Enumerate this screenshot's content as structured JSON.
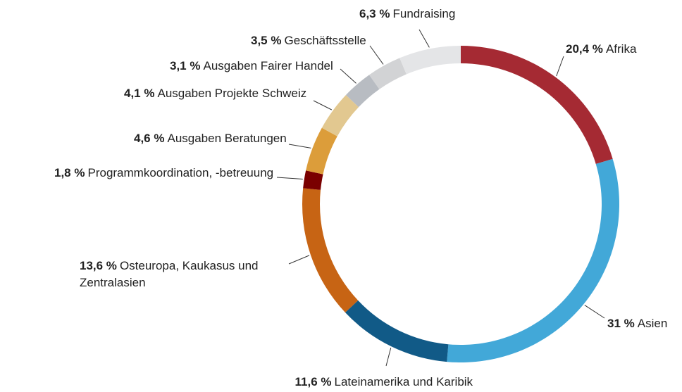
{
  "chart_data": {
    "type": "donut",
    "categories": [
      "Afrika",
      "Asien",
      "Lateinamerika und Karibik",
      "Osteuropa, Kaukasus und Zentralasien",
      "Programmkoordination, -betreuung",
      "Ausgaben Beratungen",
      "Ausgaben Projekte Schweiz",
      "Ausgaben Fairer Handel",
      "Geschäftsstelle",
      "Fundraising"
    ],
    "values": [
      20.4,
      31,
      11.6,
      13.6,
      1.8,
      4.6,
      4.1,
      3.1,
      3.5,
      6.3
    ],
    "value_labels": [
      "20,4 %",
      "31 %",
      "11,6 %",
      "13,6 %",
      "1,8 %",
      "4,6 %",
      "4,1 %",
      "3,1 %",
      "3,5 %",
      "6,3 %"
    ],
    "colors": [
      "#a52a33",
      "#42a8d8",
      "#115a87",
      "#c76414",
      "#7a0000",
      "#dc9d3a",
      "#e2c890",
      "#b8bcc2",
      "#d2d3d5",
      "#e4e5e7"
    ]
  }
}
